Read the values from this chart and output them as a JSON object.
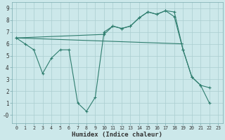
{
  "xlabel": "Humidex (Indice chaleur)",
  "bg_color": "#cce8ea",
  "line_color": "#2e7d6e",
  "grid_color": "#aacdd0",
  "xlim": [
    -0.5,
    23.5
  ],
  "ylim": [
    -0.7,
    9.5
  ],
  "series1_x": [
    0,
    1,
    2,
    3,
    4,
    5,
    6,
    7,
    8,
    9,
    10,
    11,
    12,
    13,
    14,
    15,
    16,
    17,
    18,
    19,
    20,
    21,
    22
  ],
  "series1_y": [
    6.5,
    6.0,
    5.5,
    3.5,
    4.8,
    5.5,
    5.5,
    1.0,
    0.3,
    1.5,
    7.0,
    7.5,
    7.3,
    7.5,
    8.2,
    8.7,
    8.5,
    8.8,
    8.7,
    5.5,
    3.2,
    2.5,
    1.0
  ],
  "series2_x": [
    0,
    19
  ],
  "series2_y": [
    6.5,
    6.0
  ],
  "series3_x": [
    0,
    10,
    11,
    12,
    13,
    14,
    15,
    16,
    17,
    18,
    19,
    20,
    21,
    22
  ],
  "series3_y": [
    6.5,
    6.8,
    7.5,
    7.3,
    7.5,
    8.2,
    8.7,
    8.5,
    8.8,
    8.3,
    5.5,
    3.2,
    2.5,
    2.3
  ]
}
